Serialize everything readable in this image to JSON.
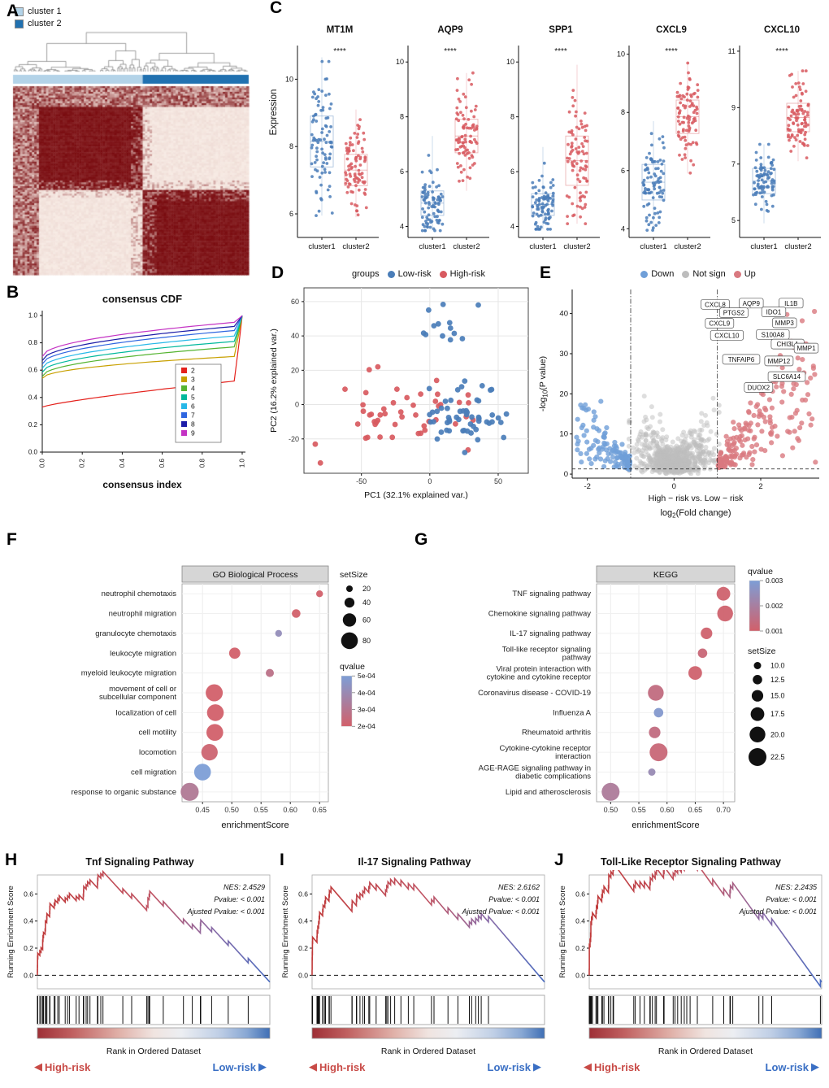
{
  "chart_data": [
    {
      "panel": "A",
      "type": "heatmap",
      "legend": [
        {
          "label": "cluster 1",
          "color": "#b3d3e8"
        },
        {
          "label": "cluster 2",
          "color": "#2171b0"
        }
      ],
      "cluster_split": 0.55,
      "heat_low": "#faf0e9",
      "heat_high": "#7a0c10"
    },
    {
      "panel": "B",
      "type": "line",
      "title": "consensus CDF",
      "xlabel": "consensus index",
      "x_ticks": [
        "0.0",
        "0.2",
        "0.4",
        "0.6",
        "0.8",
        "1.0"
      ],
      "y_ticks": [
        "0.0",
        "0.2",
        "0.4",
        "0.6",
        "0.8",
        "1.0"
      ],
      "series": [
        {
          "k": "2",
          "color": "#e4211c",
          "start": 0.33,
          "end": 0.52
        },
        {
          "k": "3",
          "color": "#c8a000",
          "start": 0.54,
          "end": 0.7
        },
        {
          "k": "4",
          "color": "#55b431",
          "start": 0.555,
          "end": 0.77
        },
        {
          "k": "5",
          "color": "#00b89c",
          "start": 0.585,
          "end": 0.81
        },
        {
          "k": "6",
          "color": "#27b8e8",
          "start": 0.615,
          "end": 0.85
        },
        {
          "k": "7",
          "color": "#2f66e0",
          "start": 0.645,
          "end": 0.89
        },
        {
          "k": "8",
          "color": "#1c1ca8",
          "start": 0.67,
          "end": 0.92
        },
        {
          "k": "9",
          "color": "#c433c4",
          "start": 0.7,
          "end": 0.95
        }
      ]
    },
    {
      "panel": "C",
      "type": "boxplot-jitter",
      "ylabel": "Expression",
      "significance": "****",
      "group_labels": [
        "cluster1",
        "cluster2"
      ],
      "colors": {
        "cluster1": "#4a7db8",
        "cluster2": "#d85a60"
      },
      "genes": [
        {
          "name": "MT1M",
          "ticks": [
            6,
            8,
            10
          ],
          "ylim": [
            5.3,
            11.0
          ],
          "c1": [
            8.15,
            1.05,
            5.95,
            10.65
          ],
          "c2": [
            7.3,
            0.65,
            5.9,
            9.1
          ]
        },
        {
          "name": "AQP9",
          "ticks": [
            4,
            6,
            8,
            10
          ],
          "ylim": [
            3.6,
            10.6
          ],
          "c1": [
            4.85,
            0.62,
            3.85,
            7.3
          ],
          "c2": [
            7.3,
            0.85,
            5.3,
            9.6
          ]
        },
        {
          "name": "SPP1",
          "ticks": [
            4,
            6,
            8,
            10
          ],
          "ylim": [
            3.6,
            10.6
          ],
          "c1": [
            4.8,
            0.55,
            3.9,
            6.9
          ],
          "c2": [
            6.4,
            1.25,
            4.1,
            9.9
          ]
        },
        {
          "name": "CXCL9",
          "ticks": [
            4,
            6,
            8,
            10
          ],
          "ylim": [
            3.7,
            10.3
          ],
          "c1": [
            5.6,
            0.85,
            3.95,
            7.7
          ],
          "c2": [
            7.85,
            0.8,
            5.9,
            9.7
          ]
        },
        {
          "name": "CXCL10",
          "ticks": [
            5,
            7,
            9,
            11
          ],
          "ylim": [
            4.4,
            11.2
          ],
          "c1": [
            6.4,
            0.62,
            4.9,
            7.7
          ],
          "c2": [
            8.65,
            0.7,
            7.1,
            10.3
          ]
        }
      ]
    },
    {
      "panel": "D",
      "type": "scatter",
      "legend_title": "groups",
      "series": [
        {
          "name": "Low-risk"
        },
        {
          "name": "High-risk"
        }
      ],
      "colors": {
        "low": "#4a7db8",
        "high": "#d85a60"
      },
      "xlabel": "PC1 (32.1% explained var.)",
      "ylabel": "PC2 (16.2% explained var.)",
      "xlim": [
        -92,
        72
      ],
      "ylim": [
        -40,
        68
      ],
      "x_ticks": [
        -50,
        0,
        50
      ],
      "y_ticks": [
        -20,
        0,
        20,
        40,
        60
      ],
      "clusters": [
        {
          "color": "blue",
          "n": 13,
          "cx": 4,
          "cy": 47,
          "sx": 11,
          "sy": 6.5
        },
        {
          "color": "red",
          "n": 46,
          "cx": -16,
          "cy": -5,
          "sx": 26,
          "sy": 10
        },
        {
          "color": "blue",
          "n": 54,
          "cx": 27,
          "cy": -8,
          "sx": 18,
          "sy": 9,
          "clipx": -6
        }
      ],
      "extra_red": [
        [
          -80,
          -34
        ],
        [
          -62,
          9
        ],
        [
          -38,
          22
        ]
      ]
    },
    {
      "panel": "E",
      "type": "volcano",
      "legend": [
        {
          "label": "Down",
          "color_key": "down"
        },
        {
          "label": "Not sign",
          "color_key": "notsig"
        },
        {
          "label": "Up",
          "color_key": "up"
        }
      ],
      "colors": {
        "down": "#6f9fd8",
        "notsig": "#bdbdbd",
        "up": "#d97980"
      },
      "xlim": [
        -2.35,
        3.35
      ],
      "ylim": [
        -1,
        46
      ],
      "x_ticks": [
        -2,
        0,
        2
      ],
      "y_ticks": [
        0,
        10,
        20,
        30,
        40
      ],
      "vlines": [
        -1,
        1
      ],
      "hline": 1.3,
      "n_down": 120,
      "n_notsig": 720,
      "n_up": 190,
      "xlabel_line1": "High − risk vs. Low − risk",
      "xlabel_log_prefix": "log",
      "xlabel_log_sub": "2",
      "xlabel_log_suffix": "(Fold change)",
      "ylabel_prefix": "-log",
      "ylabel_sub": "10",
      "ylabel_suffix": "(P value)",
      "labels": [
        {
          "gene": "CXCL8",
          "x": 0.95,
          "y": 42.3
        },
        {
          "gene": "AQP9",
          "x": 1.78,
          "y": 42.6
        },
        {
          "gene": "IL1B",
          "x": 2.7,
          "y": 42.6
        },
        {
          "gene": "PTGS2",
          "x": 1.38,
          "y": 40.2
        },
        {
          "gene": "IDO1",
          "x": 2.3,
          "y": 40.4
        },
        {
          "gene": "CXCL9",
          "x": 1.05,
          "y": 37.6
        },
        {
          "gene": "MMP3",
          "x": 2.55,
          "y": 37.7
        },
        {
          "gene": "CXCL10",
          "x": 1.22,
          "y": 34.6
        },
        {
          "gene": "S100A8",
          "x": 2.28,
          "y": 34.8
        },
        {
          "gene": "CHI3L1",
          "x": 2.62,
          "y": 32.4
        },
        {
          "gene": "MMP1",
          "x": 3.05,
          "y": 31.4
        },
        {
          "gene": "TNFAIP6",
          "x": 1.55,
          "y": 28.6
        },
        {
          "gene": "MMP12",
          "x": 2.42,
          "y": 28.2
        },
        {
          "gene": "SLC6A14",
          "x": 2.6,
          "y": 24.3
        },
        {
          "gene": "DUOX2",
          "x": 1.95,
          "y": 21.6
        }
      ]
    },
    {
      "panel": "F",
      "type": "dotplot",
      "strip": "GO Biological Process",
      "xlabel": "enrichmentScore",
      "xlim": [
        0.415,
        0.665
      ],
      "x_ticks": [
        0.45,
        0.5,
        0.55,
        0.6,
        0.65
      ],
      "q_dom": [
        0.0002,
        0.0005
      ],
      "q_red": "#d2606a",
      "q_blue": "#7d9ed6",
      "size_title": "setSize",
      "size_ticks": [
        "20",
        "40",
        "60",
        "80"
      ],
      "q_title": "qvalue",
      "q_ticks": [
        "5e-04",
        "4e-04",
        "3e-04",
        "2e-04"
      ],
      "rows": [
        {
          "label": "neutrophil chemotaxis",
          "es": 0.65,
          "setSize": 22,
          "qvalue": 0.0002
        },
        {
          "label": "neutrophil migration",
          "es": 0.61,
          "setSize": 32,
          "qvalue": 0.0002
        },
        {
          "label": "granulocyte chemotaxis",
          "es": 0.58,
          "setSize": 22,
          "qvalue": 0.00042
        },
        {
          "label": "leukocyte migration",
          "es": 0.505,
          "setSize": 48,
          "qvalue": 0.0002
        },
        {
          "label": "myeloid leukocyte migration",
          "es": 0.565,
          "setSize": 30,
          "qvalue": 0.00028
        },
        {
          "label": "movement of cell or\nsubcellular component",
          "es": 0.47,
          "setSize": 82,
          "qvalue": 0.0002
        },
        {
          "label": "localization of cell",
          "es": 0.472,
          "setSize": 80,
          "qvalue": 0.0002
        },
        {
          "label": "cell motility",
          "es": 0.471,
          "setSize": 80,
          "qvalue": 0.0002
        },
        {
          "label": "locomotion",
          "es": 0.462,
          "setSize": 78,
          "qvalue": 0.00022
        },
        {
          "label": "cell migration",
          "es": 0.45,
          "setSize": 80,
          "qvalue": 0.0005
        },
        {
          "label": "response to organic substance",
          "es": 0.428,
          "setSize": 88,
          "qvalue": 0.00032
        }
      ]
    },
    {
      "panel": "G",
      "type": "dotplot",
      "strip": "KEGG",
      "xlabel": "enrichmentScore",
      "xlim": [
        0.475,
        0.72
      ],
      "x_ticks": [
        0.5,
        0.55,
        0.6,
        0.65,
        0.7
      ],
      "q_dom": [
        0.0005,
        0.003
      ],
      "q_red": "#d2606a",
      "q_blue": "#7d9ed6",
      "size_title": "setSize",
      "size_ticks": [
        "10.0",
        "12.5",
        "15.0",
        "17.5",
        "20.0",
        "22.5"
      ],
      "q_title": "qvalue",
      "q_ticks": [
        "0.003",
        "0.002",
        "0.001"
      ],
      "rows": [
        {
          "label": "TNF signaling pathway",
          "es": 0.7,
          "setSize": 17.5,
          "qvalue": 0.0006
        },
        {
          "label": "Chemokine signaling pathway",
          "es": 0.703,
          "setSize": 20,
          "qvalue": 0.0006
        },
        {
          "label": "IL-17 signaling pathway",
          "es": 0.67,
          "setSize": 15,
          "qvalue": 0.0006
        },
        {
          "label": "Toll-like receptor signaling\npathway",
          "es": 0.663,
          "setSize": 12.5,
          "qvalue": 0.0008
        },
        {
          "label": "Viral protein interaction with\ncytokine and cytokine receptor",
          "es": 0.65,
          "setSize": 17.5,
          "qvalue": 0.0006
        },
        {
          "label": "Coronavirus disease - COVID-19",
          "es": 0.58,
          "setSize": 20,
          "qvalue": 0.001
        },
        {
          "label": "Influenza A",
          "es": 0.585,
          "setSize": 12.5,
          "qvalue": 0.0028
        },
        {
          "label": "Rheumatoid arthritis",
          "es": 0.578,
          "setSize": 15,
          "qvalue": 0.001
        },
        {
          "label": "Cytokine-cytokine receptor\ninteraction",
          "es": 0.585,
          "setSize": 22.5,
          "qvalue": 0.0008
        },
        {
          "label": "AGE-RAGE signaling pathway in\ndiabetic complications",
          "es": 0.573,
          "setSize": 10,
          "qvalue": 0.0022
        },
        {
          "label": "Lipid and atherosclerosis",
          "es": 0.5,
          "setSize": 22.5,
          "qvalue": 0.0016
        }
      ]
    },
    {
      "panel": "H",
      "type": "gsea",
      "title": "Tnf Signaling Pathway",
      "ylabel": "Running Enrichment Score",
      "xlabel": "Rank in Ordered Dataset",
      "y_ticks": [
        0,
        0.2,
        0.4,
        0.6
      ],
      "stats": {
        "nes": "NES: 2.4529",
        "pvalue": "Pvalue: < 0.001",
        "padj": "Ajusted Pvalue: < 0.001"
      },
      "peak": 0.66,
      "n_hits": 55,
      "seed": 41,
      "high_label": "High-risk",
      "low_label": "Low-risk",
      "high_arrow": "◀",
      "low_arrow": "▶",
      "high_color": "#c84a46",
      "low_color": "#3a6fc4"
    },
    {
      "panel": "I",
      "type": "gsea",
      "title": "Il-17 Signaling Pathway",
      "ylabel": "Running Enrichment Score",
      "xlabel": "Rank in Ordered Dataset",
      "y_ticks": [
        0,
        0.2,
        0.4,
        0.6
      ],
      "stats": {
        "nes": "NES: 2.6162",
        "pvalue": "Pvalue: < 0.001",
        "padj": "Ajusted Pvalue: < 0.001"
      },
      "peak": 0.68,
      "n_hits": 48,
      "seed": 42,
      "high_label": "High-risk",
      "low_label": "Low-risk",
      "high_arrow": "◀",
      "low_arrow": "▶",
      "high_color": "#c84a46",
      "low_color": "#3a6fc4"
    },
    {
      "panel": "J",
      "type": "gsea",
      "title": "Toll-Like Receptor Signaling Pathway",
      "ylabel": "Running Enrichment Score",
      "xlabel": "Rank in Ordered Dataset",
      "y_ticks": [
        0,
        0.2,
        0.4,
        0.6
      ],
      "stats": {
        "nes": "NES: 2.2435",
        "pvalue": "Pvalue: < 0.001",
        "padj": "Ajusted Pvalue: < 0.001"
      },
      "peak": 0.66,
      "n_hits": 52,
      "seed": 47,
      "high_label": "High-risk",
      "low_label": "Low-risk",
      "high_arrow": "◀",
      "low_arrow": "▶",
      "high_color": "#c84a46",
      "low_color": "#3a6fc4"
    }
  ]
}
